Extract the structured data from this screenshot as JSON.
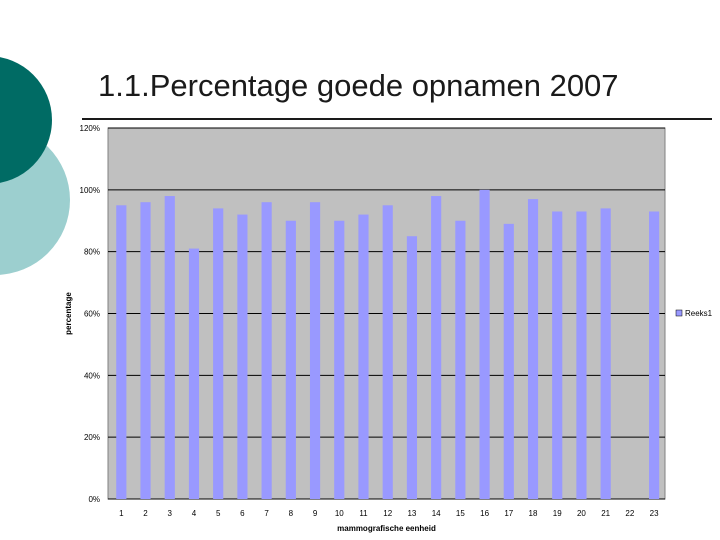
{
  "slide": {
    "title": "1.1.Percentage goede opnamen 2007"
  },
  "colors": {
    "accent_dark": "#006b64",
    "accent_light": "#9ccfcf",
    "plot_bg": "#c0c0c0",
    "bar": "#9999ff"
  },
  "chart_data": {
    "type": "bar",
    "title": "",
    "xlabel": "mammografische eenheid",
    "ylabel": "percentage",
    "categories": [
      "1",
      "2",
      "3",
      "4",
      "5",
      "6",
      "7",
      "8",
      "9",
      "10",
      "11",
      "12",
      "13",
      "14",
      "15",
      "16",
      "17",
      "18",
      "19",
      "20",
      "21",
      "22",
      "23"
    ],
    "series": [
      {
        "name": "Reeks1",
        "values": [
          95,
          96,
          98,
          81,
          94,
          92,
          96,
          90,
          96,
          90,
          92,
          95,
          85,
          98,
          90,
          100,
          89,
          97,
          93,
          93,
          94,
          0,
          93
        ]
      }
    ],
    "ylim": [
      0,
      120
    ],
    "yticks": [
      0,
      20,
      40,
      60,
      80,
      100,
      120
    ],
    "ytick_labels": [
      "0%",
      "20%",
      "40%",
      "60%",
      "80%",
      "100%",
      "120%"
    ],
    "gridlines": "horizontal, major",
    "legend_position": "right"
  }
}
